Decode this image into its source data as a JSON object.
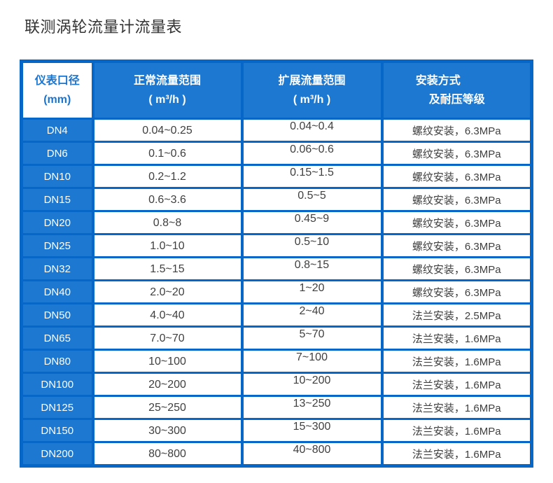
{
  "page": {
    "title": "联测涡轮流量计流量表"
  },
  "colors": {
    "table_blue": "#1c78d0",
    "border_blue": "#0667c9",
    "header_text": "#ffffff",
    "dn_header_text": "#1b74cf",
    "data_text": "#3f3f3f",
    "title_text": "#333333"
  },
  "table": {
    "headers": {
      "diameter_line1": "仪表口径",
      "diameter_line2": "(mm)",
      "normal_line1": "正常流量范围",
      "normal_line2": "( m³/h )",
      "extended_line1": "扩展流量范围",
      "extended_line2": "( m³/h )",
      "install_line1": "安装方式",
      "install_line2": "及耐压等级"
    },
    "rows": [
      {
        "dn": "DN4",
        "normal": "0.04~0.25",
        "extended": "0.04~0.4",
        "install": "螺纹安装，6.3MPa"
      },
      {
        "dn": "DN6",
        "normal": "0.1~0.6",
        "extended": "0.06~0.6",
        "install": "螺纹安装，6.3MPa"
      },
      {
        "dn": "DN10",
        "normal": "0.2~1.2",
        "extended": "0.15~1.5",
        "install": "螺纹安装，6.3MPa"
      },
      {
        "dn": "DN15",
        "normal": "0.6~3.6",
        "extended": "0.5~5",
        "install": "螺纹安装，6.3MPa"
      },
      {
        "dn": "DN20",
        "normal": "0.8~8",
        "extended": "0.45~9",
        "install": "螺纹安装，6.3MPa"
      },
      {
        "dn": "DN25",
        "normal": "1.0~10",
        "extended": "0.5~10",
        "install": "螺纹安装，6.3MPa"
      },
      {
        "dn": "DN32",
        "normal": "1.5~15",
        "extended": "0.8~15",
        "install": "螺纹安装，6.3MPa"
      },
      {
        "dn": "DN40",
        "normal": "2.0~20",
        "extended": "1~20",
        "install": "螺纹安装，6.3MPa"
      },
      {
        "dn": "DN50",
        "normal": "4.0~40",
        "extended": "2~40",
        "install": "法兰安装，2.5MPa"
      },
      {
        "dn": "DN65",
        "normal": "7.0~70",
        "extended": "5~70",
        "install": "法兰安装，1.6MPa"
      },
      {
        "dn": "DN80",
        "normal": "10~100",
        "extended": "7~100",
        "install": "法兰安装，1.6MPa"
      },
      {
        "dn": "DN100",
        "normal": "20~200",
        "extended": "10~200",
        "install": "法兰安装，1.6MPa"
      },
      {
        "dn": "DN125",
        "normal": "25~250",
        "extended": "13~250",
        "install": "法兰安装，1.6MPa"
      },
      {
        "dn": "DN150",
        "normal": "30~300",
        "extended": "15~300",
        "install": "法兰安装，1.6MPa"
      },
      {
        "dn": "DN200",
        "normal": "80~800",
        "extended": "40~800",
        "install": "法兰安装，1.6MPa"
      }
    ]
  }
}
